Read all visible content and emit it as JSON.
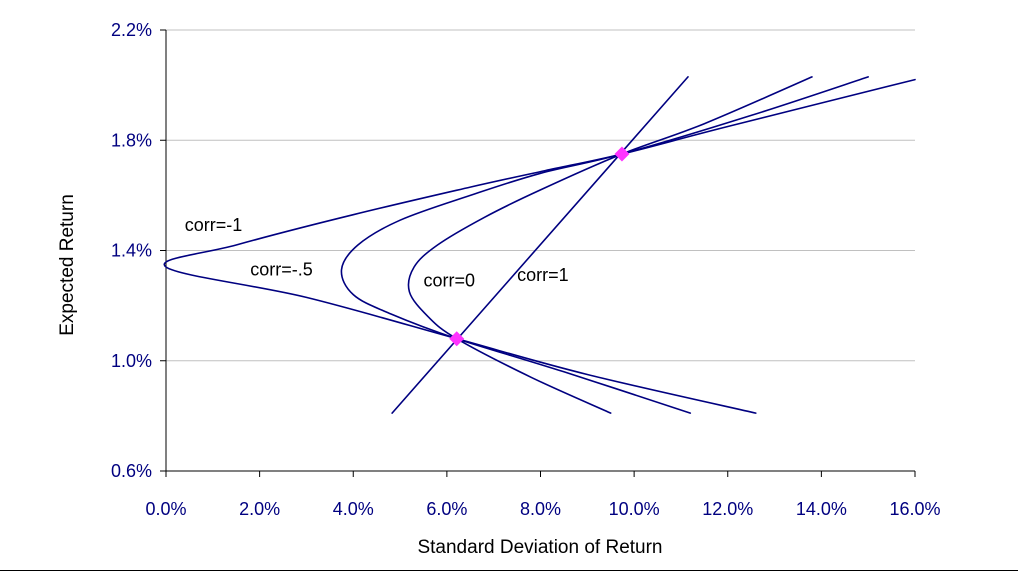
{
  "colors": {
    "line": "#000080",
    "marker": "#ff33ff",
    "tick_text": "#000080",
    "grid": "#c0c0c0",
    "axis": "#000000"
  },
  "chart_data": {
    "type": "line",
    "xlabel": "Standard Deviation of Return",
    "ylabel": "Expected Return",
    "xlim": [
      0,
      16
    ],
    "ylim": [
      0.6,
      2.2
    ],
    "x_ticks": [
      0,
      2,
      4,
      6,
      8,
      10,
      12,
      14,
      16
    ],
    "x_tick_labels": [
      "0.0%",
      "2.0%",
      "4.0%",
      "6.0%",
      "8.0%",
      "10.0%",
      "12.0%",
      "14.0%",
      "16.0%"
    ],
    "y_ticks": [
      0.6,
      1.0,
      1.4,
      1.8,
      2.2
    ],
    "y_tick_labels": [
      "0.6%",
      "1.0%",
      "1.4%",
      "1.8%",
      "2.2%"
    ],
    "grid": "horizontal",
    "legend": "none",
    "series": [
      {
        "x": [
          12.6,
          9.0,
          6.21,
          3.0,
          0.0,
          1.5,
          4.0,
          6.5,
          8.1,
          9.74,
          12.0,
          16.0
        ],
        "y": [
          0.81,
          0.95,
          1.08,
          1.23,
          1.34,
          1.42,
          1.53,
          1.63,
          1.69,
          1.75,
          1.85,
          2.02
        ]
      },
      {
        "x": [
          11.2,
          8.5,
          6.21,
          4.8,
          4.0,
          3.75,
          4.1,
          5.0,
          6.5,
          8.0,
          9.74,
          12.5,
          15.0
        ],
        "y": [
          0.81,
          0.96,
          1.08,
          1.17,
          1.24,
          1.33,
          1.42,
          1.51,
          1.6,
          1.68,
          1.75,
          1.89,
          2.03
        ]
      },
      {
        "x": [
          9.5,
          7.8,
          6.21,
          5.6,
          5.2,
          5.3,
          5.8,
          6.8,
          8.0,
          9.74,
          11.5,
          13.8
        ],
        "y": [
          0.81,
          0.94,
          1.08,
          1.16,
          1.25,
          1.34,
          1.42,
          1.52,
          1.62,
          1.75,
          1.86,
          2.03
        ]
      },
      {
        "x": [
          4.83,
          11.15
        ],
        "y": [
          0.81,
          2.03
        ]
      }
    ],
    "points": [
      {
        "x": 6.21,
        "y": 1.08
      },
      {
        "x": 9.74,
        "y": 1.75
      }
    ],
    "annotations": [
      {
        "text": "corr=-1",
        "x": 0.4,
        "y": 1.47
      },
      {
        "text": "corr=-.5",
        "x": 1.8,
        "y": 1.31
      },
      {
        "text": "corr=0",
        "x": 5.5,
        "y": 1.27
      },
      {
        "text": "corr=1",
        "x": 7.5,
        "y": 1.29
      }
    ]
  }
}
